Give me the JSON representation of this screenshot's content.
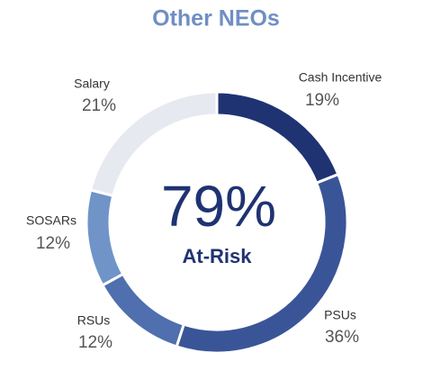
{
  "chart_data": {
    "type": "donut",
    "title": "Other NEOs",
    "categories": [
      "Cash Incentive",
      "PSUs",
      "RSUs",
      "SOSARs",
      "Salary"
    ],
    "values": [
      19,
      36,
      12,
      12,
      21
    ],
    "value_labels": [
      "19%",
      "36%",
      "12%",
      "12%",
      "21%"
    ],
    "colors": [
      "#1f3372",
      "#3a5597",
      "#4f6fae",
      "#7094c8",
      "#e6e9f0"
    ],
    "center": {
      "value": 79,
      "label": "79%"
    },
    "center_caption": "At-Risk"
  }
}
